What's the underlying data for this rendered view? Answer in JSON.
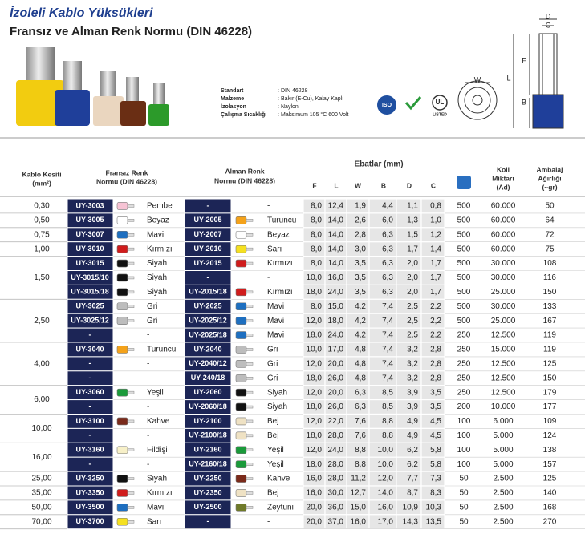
{
  "header": {
    "title": "İzoleli Kablo Yüksükleri",
    "subtitle": "Fransız ve Alman Renk Normu  (DIN  46228)"
  },
  "specs": [
    {
      "label": "Standart",
      "value": "DIN 46228"
    },
    {
      "label": "Malzeme",
      "value": "Bakır (E-Cu), Kalay Kaplı"
    },
    {
      "label": "İzolasyon",
      "value": "Naylon"
    },
    {
      "label": "Çalışma Sıcaklığı",
      "value": "Maksimum 105 °C 600 Volt"
    }
  ],
  "icons": {
    "iso": "ISO",
    "ul": "UL",
    "listed": "LISTED"
  },
  "drawing": {
    "labels": [
      "C",
      "D",
      "F",
      "L",
      "B",
      "W"
    ]
  },
  "table": {
    "head": {
      "section": [
        "Kablo Kesiti",
        "(mm²)"
      ],
      "fr": [
        "Fransız Renk",
        "Normu (DIN 46228)"
      ],
      "de": [
        "Alman Renk",
        "Normu (DIN 46228)"
      ],
      "dims_title": "Ebatlar (mm)",
      "dims": [
        "F",
        "L",
        "W",
        "B",
        "D",
        "C"
      ],
      "koli": [
        "Koli",
        "Miktarı",
        "(Ad)"
      ],
      "weight": [
        "Ambalaj",
        "Ağırlığı",
        "(~gr)"
      ]
    },
    "groups": [
      {
        "section": "0,30",
        "rows": [
          {
            "fr_code": "UY-3003",
            "fr_color": "Pembe",
            "fr_swatch": "#f6c3d4",
            "de_code": "-",
            "de_color": "-",
            "de_swatch": null,
            "dims": [
              "8,0",
              "12,4",
              "1,9",
              "4,4",
              "1,1",
              "0,8"
            ],
            "box": "500",
            "koli": "60.000",
            "weight": "50"
          }
        ]
      },
      {
        "section": "0,50",
        "rows": [
          {
            "fr_code": "UY-3005",
            "fr_color": "Beyaz",
            "fr_swatch": "#ffffff",
            "de_code": "UY-2005",
            "de_color": "Turuncu",
            "de_swatch": "#f4a21a",
            "dims": [
              "8,0",
              "14,0",
              "2,6",
              "6,0",
              "1,3",
              "1,0"
            ],
            "box": "500",
            "koli": "60.000",
            "weight": "64"
          }
        ]
      },
      {
        "section": "0,75",
        "rows": [
          {
            "fr_code": "UY-3007",
            "fr_color": "Mavi",
            "fr_swatch": "#1e6fc0",
            "de_code": "UY-2007",
            "de_color": "Beyaz",
            "de_swatch": "#ffffff",
            "dims": [
              "8,0",
              "14,0",
              "2,8",
              "6,3",
              "1,5",
              "1,2"
            ],
            "box": "500",
            "koli": "60.000",
            "weight": "72"
          }
        ]
      },
      {
        "section": "1,00",
        "rows": [
          {
            "fr_code": "UY-3010",
            "fr_color": "Kırmızı",
            "fr_swatch": "#d01c1c",
            "de_code": "UY-2010",
            "de_color": "Sarı",
            "de_swatch": "#f5e020",
            "dims": [
              "8,0",
              "14,0",
              "3,0",
              "6,3",
              "1,7",
              "1,4"
            ],
            "box": "500",
            "koli": "60.000",
            "weight": "75"
          }
        ]
      },
      {
        "section": "1,50",
        "rows": [
          {
            "fr_code": "UY-3015",
            "fr_color": "Siyah",
            "fr_swatch": "#111111",
            "de_code": "UY-2015",
            "de_color": "Kırmızı",
            "de_swatch": "#d01c1c",
            "dims": [
              "8,0",
              "14,0",
              "3,5",
              "6,3",
              "2,0",
              "1,7"
            ],
            "box": "500",
            "koli": "30.000",
            "weight": "108"
          },
          {
            "fr_code": "UY-3015/10",
            "fr_color": "Siyah",
            "fr_swatch": "#111111",
            "de_code": "-",
            "de_color": "-",
            "de_swatch": null,
            "dims": [
              "10,0",
              "16,0",
              "3,5",
              "6,3",
              "2,0",
              "1,7"
            ],
            "box": "500",
            "koli": "30.000",
            "weight": "116"
          },
          {
            "fr_code": "UY-3015/18",
            "fr_color": "Siyah",
            "fr_swatch": "#111111",
            "de_code": "UY-2015/18",
            "de_color": "Kırmızı",
            "de_swatch": "#d01c1c",
            "dims": [
              "18,0",
              "24,0",
              "3,5",
              "6,3",
              "2,0",
              "1,7"
            ],
            "box": "500",
            "koli": "25.000",
            "weight": "150"
          }
        ]
      },
      {
        "section": "2,50",
        "rows": [
          {
            "fr_code": "UY-3025",
            "fr_color": "Gri",
            "fr_swatch": "#bdbdbd",
            "de_code": "UY-2025",
            "de_color": "Mavi",
            "de_swatch": "#1e6fc0",
            "dims": [
              "8,0",
              "15,0",
              "4,2",
              "7,4",
              "2,5",
              "2,2"
            ],
            "box": "500",
            "koli": "30.000",
            "weight": "133"
          },
          {
            "fr_code": "UY-3025/12",
            "fr_color": "Gri",
            "fr_swatch": "#bdbdbd",
            "de_code": "UY-2025/12",
            "de_color": "Mavi",
            "de_swatch": "#1e6fc0",
            "dims": [
              "12,0",
              "18,0",
              "4,2",
              "7,4",
              "2,5",
              "2,2"
            ],
            "box": "500",
            "koli": "25.000",
            "weight": "167"
          },
          {
            "fr_code": "-",
            "fr_color": "-",
            "fr_swatch": null,
            "de_code": "UY-2025/18",
            "de_color": "Mavi",
            "de_swatch": "#1e6fc0",
            "dims": [
              "18,0",
              "24,0",
              "4,2",
              "7,4",
              "2,5",
              "2,2"
            ],
            "box": "250",
            "koli": "12.500",
            "weight": "119"
          }
        ]
      },
      {
        "section": "4,00",
        "rows": [
          {
            "fr_code": "UY-3040",
            "fr_color": "Turuncu",
            "fr_swatch": "#f4a21a",
            "de_code": "UY-2040",
            "de_color": "Gri",
            "de_swatch": "#bdbdbd",
            "dims": [
              "10,0",
              "17,0",
              "4,8",
              "7,4",
              "3,2",
              "2,8"
            ],
            "box": "250",
            "koli": "15.000",
            "weight": "119"
          },
          {
            "fr_code": "-",
            "fr_color": "-",
            "fr_swatch": null,
            "de_code": "UY-2040/12",
            "de_color": "Gri",
            "de_swatch": "#bdbdbd",
            "dims": [
              "12,0",
              "20,0",
              "4,8",
              "7,4",
              "3,2",
              "2,8"
            ],
            "box": "250",
            "koli": "12.500",
            "weight": "125"
          },
          {
            "fr_code": "-",
            "fr_color": "-",
            "fr_swatch": null,
            "de_code": "UY-240/18",
            "de_color": "Gri",
            "de_swatch": "#bdbdbd",
            "dims": [
              "18,0",
              "26,0",
              "4,8",
              "7,4",
              "3,2",
              "2,8"
            ],
            "box": "250",
            "koli": "12.500",
            "weight": "150"
          }
        ]
      },
      {
        "section": "6,00",
        "rows": [
          {
            "fr_code": "UY-3060",
            "fr_color": "Yeşil",
            "fr_swatch": "#1a9a3a",
            "de_code": "UY-2060",
            "de_color": "Siyah",
            "de_swatch": "#111111",
            "dims": [
              "12,0",
              "20,0",
              "6,3",
              "8,5",
              "3,9",
              "3,5"
            ],
            "box": "250",
            "koli": "12.500",
            "weight": "179"
          },
          {
            "fr_code": "-",
            "fr_color": "-",
            "fr_swatch": null,
            "de_code": "UY-2060/18",
            "de_color": "Siyah",
            "de_swatch": "#111111",
            "dims": [
              "18,0",
              "26,0",
              "6,3",
              "8,5",
              "3,9",
              "3,5"
            ],
            "box": "200",
            "koli": "10.000",
            "weight": "177"
          }
        ]
      },
      {
        "section": "10,00",
        "rows": [
          {
            "fr_code": "UY-3100",
            "fr_color": "Kahve",
            "fr_swatch": "#7a2a1a",
            "de_code": "UY-2100",
            "de_color": "Bej",
            "de_swatch": "#efe2c4",
            "dims": [
              "12,0",
              "22,0",
              "7,6",
              "8,8",
              "4,9",
              "4,5"
            ],
            "box": "100",
            "koli": "6.000",
            "weight": "109"
          },
          {
            "fr_code": "-",
            "fr_color": "-",
            "fr_swatch": null,
            "de_code": "UY-2100/18",
            "de_color": "Bej",
            "de_swatch": "#efe2c4",
            "dims": [
              "18,0",
              "28,0",
              "7,6",
              "8,8",
              "4,9",
              "4,5"
            ],
            "box": "100",
            "koli": "5.000",
            "weight": "124"
          }
        ]
      },
      {
        "section": "16,00",
        "rows": [
          {
            "fr_code": "UY-3160",
            "fr_color": "Fildişi",
            "fr_swatch": "#f7f0c8",
            "de_code": "UY-2160",
            "de_color": "Yeşil",
            "de_swatch": "#1a9a3a",
            "dims": [
              "12,0",
              "24,0",
              "8,8",
              "10,0",
              "6,2",
              "5,8"
            ],
            "box": "100",
            "koli": "5.000",
            "weight": "138"
          },
          {
            "fr_code": "-",
            "fr_color": "-",
            "fr_swatch": null,
            "de_code": "UY-2160/18",
            "de_color": "Yeşil",
            "de_swatch": "#1a9a3a",
            "dims": [
              "18,0",
              "28,0",
              "8,8",
              "10,0",
              "6,2",
              "5,8"
            ],
            "box": "100",
            "koli": "5.000",
            "weight": "157"
          }
        ]
      },
      {
        "section": "25,00",
        "rows": [
          {
            "fr_code": "UY-3250",
            "fr_color": "Siyah",
            "fr_swatch": "#111111",
            "de_code": "UY-2250",
            "de_color": "Kahve",
            "de_swatch": "#7a2a1a",
            "dims": [
              "16,0",
              "28,0",
              "11,2",
              "12,0",
              "7,7",
              "7,3"
            ],
            "box": "50",
            "koli": "2.500",
            "weight": "125"
          }
        ]
      },
      {
        "section": "35,00",
        "rows": [
          {
            "fr_code": "UY-3350",
            "fr_color": "Kırmızı",
            "fr_swatch": "#d01c1c",
            "de_code": "UY-2350",
            "de_color": "Bej",
            "de_swatch": "#efe2c4",
            "dims": [
              "16,0",
              "30,0",
              "12,7",
              "14,0",
              "8,7",
              "8,3"
            ],
            "box": "50",
            "koli": "2.500",
            "weight": "140"
          }
        ]
      },
      {
        "section": "50,00",
        "rows": [
          {
            "fr_code": "UY-3500",
            "fr_color": "Mavi",
            "fr_swatch": "#1e6fc0",
            "de_code": "UY-2500",
            "de_color": "Zeytuni",
            "de_swatch": "#6f7a2a",
            "dims": [
              "20,0",
              "36,0",
              "15,0",
              "16,0",
              "10,9",
              "10,3"
            ],
            "box": "50",
            "koli": "2.500",
            "weight": "168"
          }
        ]
      },
      {
        "section": "70,00",
        "rows": [
          {
            "fr_code": "UY-3700",
            "fr_color": "Sarı",
            "fr_swatch": "#f5e020",
            "de_code": "-",
            "de_color": "-",
            "de_swatch": null,
            "dims": [
              "20,0",
              "37,0",
              "16,0",
              "17,0",
              "14,3",
              "13,5"
            ],
            "box": "50",
            "koli": "2.500",
            "weight": "270"
          }
        ]
      }
    ]
  }
}
